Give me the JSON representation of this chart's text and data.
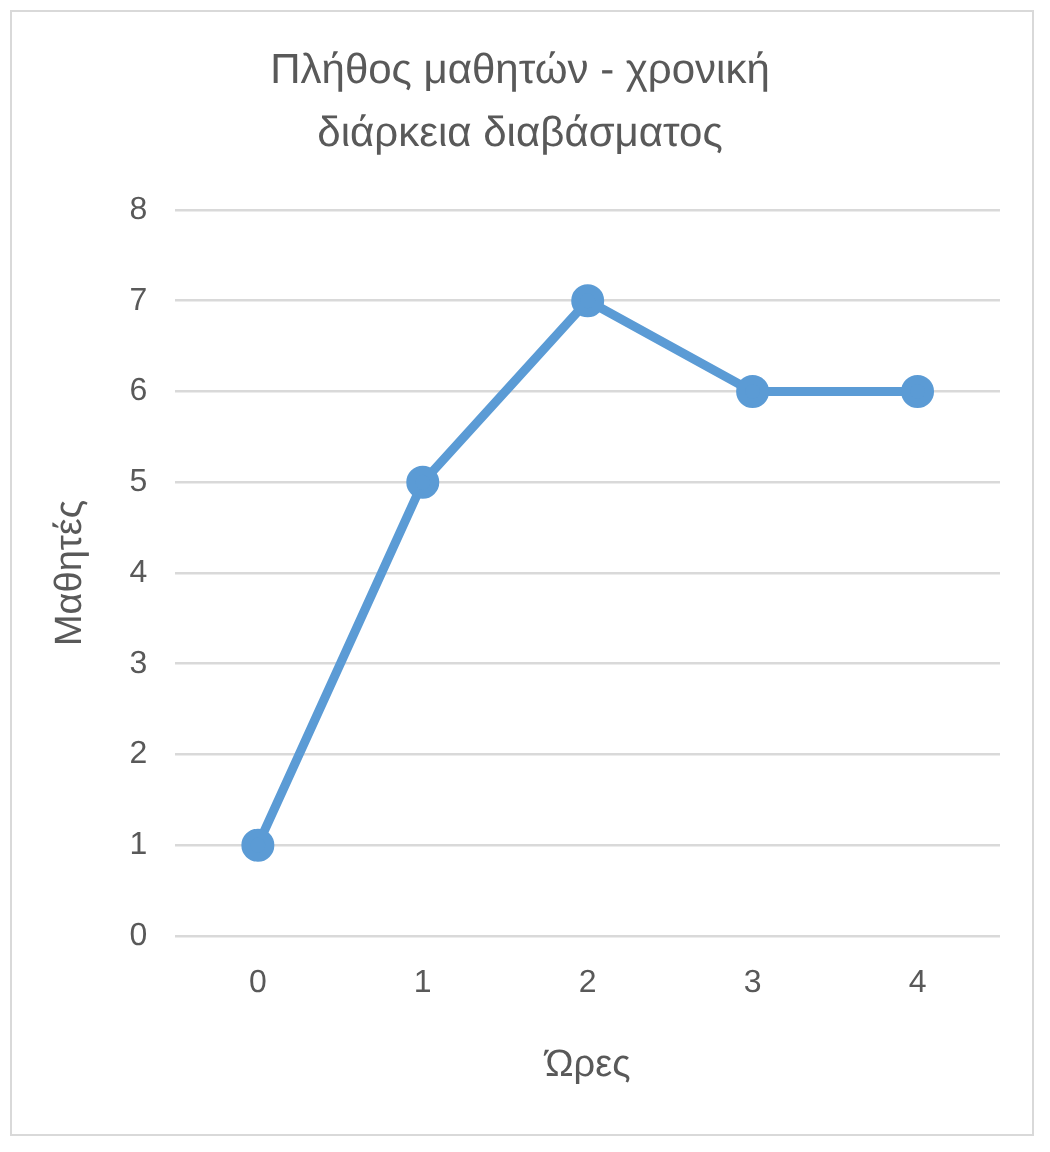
{
  "chart_data": {
    "type": "line",
    "title": "Πλήθος μαθητών - χρονική διάρκεια διαβάσματος",
    "xlabel": "Ώρες",
    "ylabel": "Μαθητές",
    "categories": [
      "0",
      "1",
      "2",
      "3",
      "4"
    ],
    "series": [
      {
        "color": "#5b9bd5",
        "values": [
          1,
          5,
          7,
          6,
          6
        ]
      }
    ],
    "ylim": [
      0,
      8
    ],
    "yticks": [
      0,
      1,
      2,
      3,
      4,
      5,
      6,
      7,
      8
    ],
    "grid": "y",
    "legend": false,
    "marker": "circle",
    "line_style": "solid"
  }
}
